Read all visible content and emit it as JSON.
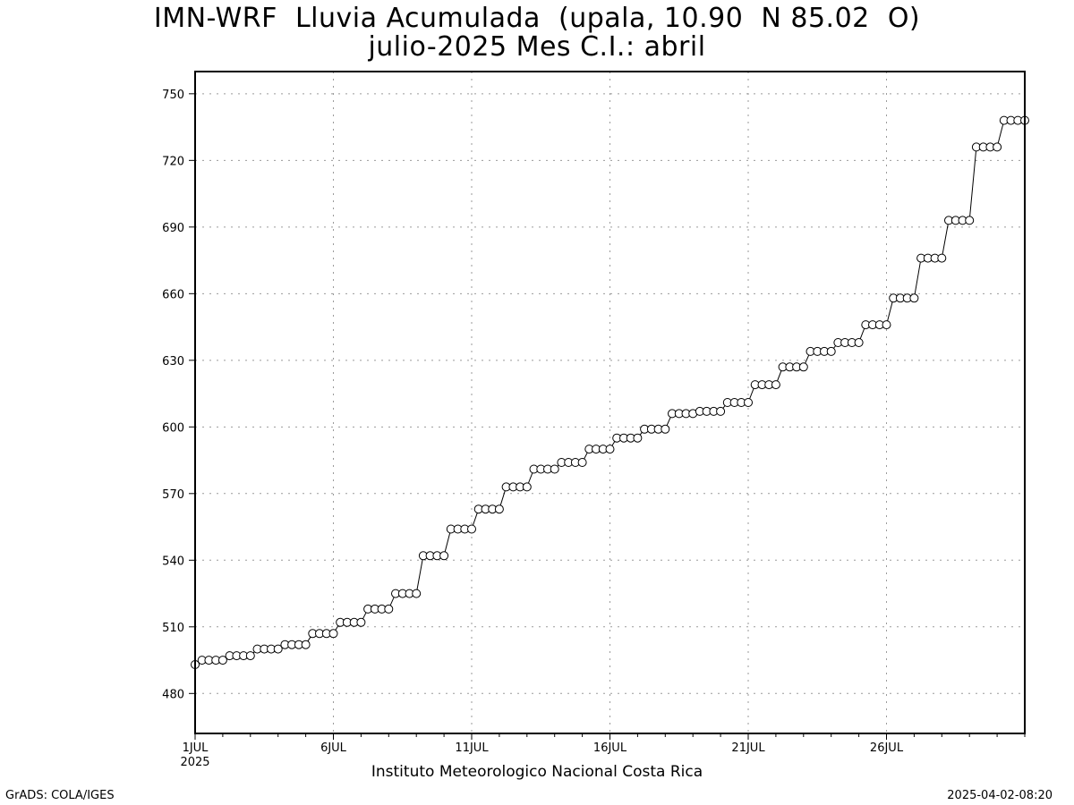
{
  "chart_data": {
    "type": "line",
    "title": "IMN-WRF  Lluvia Acumulada  (upala, 10.90  N 85.02  O)",
    "subtitle": "julio-2025 Mes C.I.: abril",
    "credit": "Instituto Meteorologico Nacional Costa Rica",
    "xlabel": "",
    "ylabel": "",
    "ylim": [
      462,
      760
    ],
    "xlim": [
      1,
      31
    ],
    "grid": true,
    "marker": "open-circle",
    "y_ticks": [
      480,
      510,
      540,
      570,
      600,
      630,
      660,
      690,
      720,
      750
    ],
    "x_ticks": [
      {
        "x": 1,
        "label": "1JUL",
        "sublabel": "2025"
      },
      {
        "x": 6,
        "label": "6JUL",
        "sublabel": ""
      },
      {
        "x": 11,
        "label": "11JUL",
        "sublabel": ""
      },
      {
        "x": 16,
        "label": "16JUL",
        "sublabel": ""
      },
      {
        "x": 21,
        "label": "21JUL",
        "sublabel": ""
      },
      {
        "x": 26,
        "label": "26JUL",
        "sublabel": ""
      }
    ],
    "points_per_day": 4,
    "daily_values": [
      [
        495,
        495,
        495,
        495
      ],
      [
        497,
        497,
        497,
        497
      ],
      [
        500,
        500,
        500,
        500
      ],
      [
        502,
        502,
        502,
        502
      ],
      [
        507,
        507,
        507,
        507
      ],
      [
        512,
        512,
        512,
        512
      ],
      [
        518,
        518,
        518,
        518
      ],
      [
        525,
        525,
        525,
        525
      ],
      [
        542,
        542,
        542,
        542
      ],
      [
        554,
        554,
        554,
        554
      ],
      [
        563,
        563,
        563,
        563
      ],
      [
        573,
        573,
        573,
        573
      ],
      [
        581,
        581,
        581,
        581
      ],
      [
        584,
        584,
        584,
        584
      ],
      [
        590,
        590,
        590,
        590
      ],
      [
        595,
        595,
        595,
        595
      ],
      [
        599,
        599,
        599,
        599
      ],
      [
        606,
        606,
        606,
        606
      ],
      [
        607,
        607,
        607,
        607
      ],
      [
        611,
        611,
        611,
        611
      ],
      [
        619,
        619,
        619,
        619
      ],
      [
        627,
        627,
        627,
        627
      ],
      [
        634,
        634,
        634,
        634
      ],
      [
        638,
        638,
        638,
        638
      ],
      [
        646,
        646,
        646,
        646
      ],
      [
        658,
        658,
        658,
        658
      ],
      [
        676,
        676,
        676,
        676
      ],
      [
        693,
        693,
        693,
        693
      ],
      [
        726,
        726,
        726,
        726
      ],
      [
        738,
        738,
        738,
        738
      ]
    ],
    "start_value": 493
  },
  "footer": {
    "left": "GrADS: COLA/IGES",
    "right": "2025-04-02-08:20"
  }
}
